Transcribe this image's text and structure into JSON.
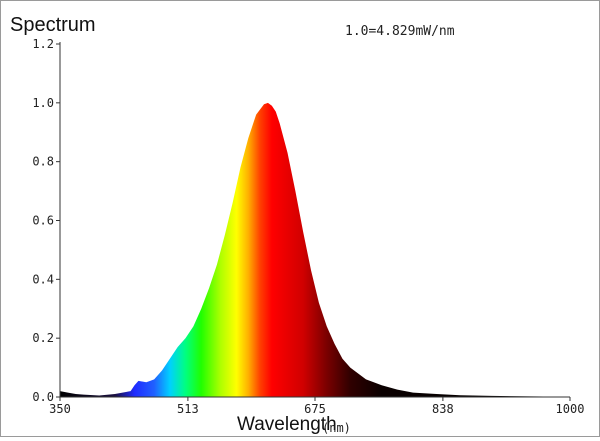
{
  "chart_data": {
    "type": "area",
    "title": "Spectrum",
    "annotation": "1.0=4.829mW/nm",
    "xlabel": "Wavelength",
    "xunit": "(nm)",
    "ylabel": "",
    "xlim": [
      350,
      1000
    ],
    "ylim": [
      0,
      1.2
    ],
    "x_ticks": [
      "350",
      "513",
      "675",
      "838",
      "1000"
    ],
    "y_ticks": [
      "0.0",
      "0.2",
      "0.4",
      "0.6",
      "0.8",
      "1.0",
      "1.2"
    ],
    "grid": false,
    "series": [
      {
        "x": [
          350,
          360,
          370,
          380,
          400,
          420,
          440,
          445,
          450,
          460,
          470,
          480,
          490,
          500,
          510,
          520,
          530,
          540,
          550,
          560,
          570,
          580,
          590,
          600,
          610,
          615,
          620,
          625,
          630,
          640,
          650,
          660,
          670,
          680,
          690,
          700,
          710,
          720,
          740,
          760,
          780,
          800,
          830,
          860,
          900,
          950,
          1000
        ],
        "y": [
          0.02,
          0.015,
          0.01,
          0.008,
          0.005,
          0.01,
          0.02,
          0.04,
          0.055,
          0.05,
          0.06,
          0.09,
          0.13,
          0.17,
          0.2,
          0.24,
          0.3,
          0.37,
          0.45,
          0.55,
          0.66,
          0.78,
          0.88,
          0.96,
          0.995,
          1.0,
          0.99,
          0.97,
          0.93,
          0.83,
          0.7,
          0.56,
          0.43,
          0.32,
          0.24,
          0.18,
          0.13,
          0.1,
          0.06,
          0.04,
          0.025,
          0.015,
          0.01,
          0.006,
          0.004,
          0.002,
          0.001
        ]
      }
    ]
  }
}
